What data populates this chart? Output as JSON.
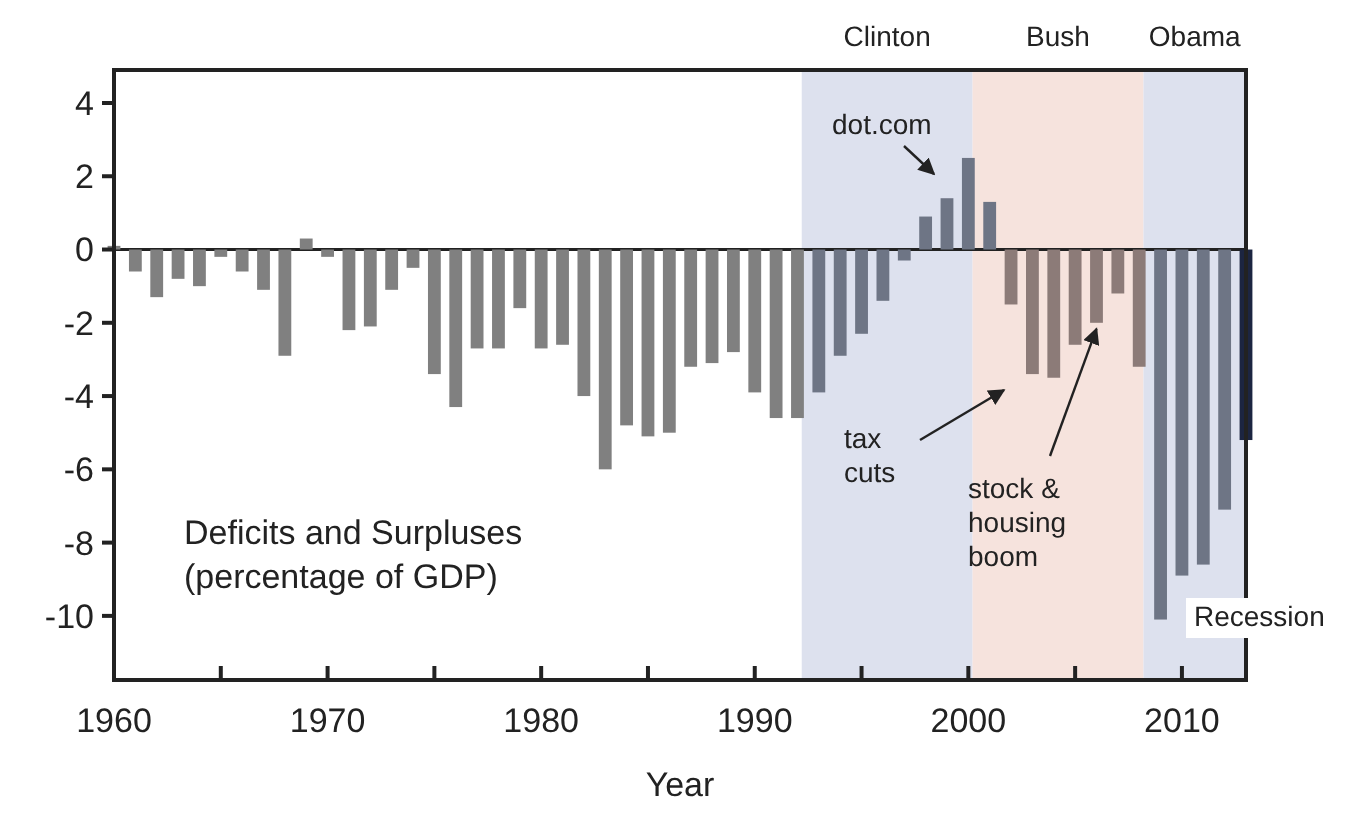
{
  "chart_data": {
    "type": "bar",
    "title": "Deficits and Surpluses\n(percentage of GDP)",
    "xlabel": "Year",
    "x": [
      1960,
      1961,
      1962,
      1963,
      1964,
      1965,
      1966,
      1967,
      1968,
      1969,
      1970,
      1971,
      1972,
      1973,
      1974,
      1975,
      1976,
      1977,
      1978,
      1979,
      1980,
      1981,
      1982,
      1983,
      1984,
      1985,
      1986,
      1987,
      1988,
      1989,
      1990,
      1991,
      1992,
      1993,
      1994,
      1995,
      1996,
      1997,
      1998,
      1999,
      2000,
      2001,
      2002,
      2003,
      2004,
      2005,
      2006,
      2007,
      2008,
      2009,
      2010,
      2011,
      2012,
      2013
    ],
    "values": [
      0.1,
      -0.6,
      -1.3,
      -0.8,
      -1.0,
      -0.2,
      -0.6,
      -1.1,
      -2.9,
      0.3,
      -0.2,
      -2.2,
      -2.1,
      -1.1,
      -0.5,
      -3.4,
      -4.3,
      -2.7,
      -2.7,
      -1.6,
      -2.7,
      -2.6,
      -4.0,
      -6.0,
      -4.8,
      -5.1,
      -5.0,
      -3.2,
      -3.1,
      -2.8,
      -3.9,
      -4.6,
      -4.6,
      -3.9,
      -2.9,
      -2.3,
      -1.4,
      -0.3,
      0.9,
      1.4,
      2.5,
      1.3,
      -1.5,
      -3.4,
      -3.5,
      -2.6,
      -2.0,
      -1.2,
      -3.2,
      -10.1,
      -8.9,
      -8.6,
      -7.1,
      -5.2
    ],
    "colors": [
      "#808080",
      "#808080",
      "#808080",
      "#808080",
      "#808080",
      "#808080",
      "#808080",
      "#808080",
      "#808080",
      "#808080",
      "#808080",
      "#808080",
      "#808080",
      "#808080",
      "#808080",
      "#808080",
      "#808080",
      "#808080",
      "#808080",
      "#808080",
      "#808080",
      "#808080",
      "#808080",
      "#808080",
      "#808080",
      "#808080",
      "#808080",
      "#808080",
      "#808080",
      "#808080",
      "#808080",
      "#808080",
      "#808080",
      "#6e7585",
      "#6e7585",
      "#6e7585",
      "#6e7585",
      "#6e7585",
      "#6e7585",
      "#6e7585",
      "#6e7585",
      "#6e7585",
      "#8c7b78",
      "#8c7b78",
      "#8c7b78",
      "#8c7b78",
      "#8c7b78",
      "#8c7b78",
      "#8c7b78",
      "#6e7585",
      "#6e7585",
      "#6e7585",
      "#6e7585",
      "#1c2541"
    ],
    "xlim": [
      1960,
      2013
    ],
    "ylim": [
      -11.75,
      4.9
    ],
    "xticks": [
      1960,
      {
        "value": 1965,
        "label": null
      },
      1970,
      {
        "value": 1975,
        "label": null
      },
      1980,
      {
        "value": 1985,
        "label": null
      },
      1990,
      {
        "value": 1995,
        "label": null
      },
      2000,
      {
        "value": 2005,
        "label": null
      },
      2010
    ],
    "yticks": [
      -10,
      -8,
      -6,
      -4,
      -2,
      0,
      2,
      4
    ],
    "bands": [
      {
        "axis": "x",
        "from": 1992.2,
        "to": 2000.2,
        "label": "Clinton",
        "color": "#dde1ee"
      },
      {
        "axis": "x",
        "from": 2000.2,
        "to": 2008.2,
        "label": "Bush",
        "color": "#f6e3dd"
      },
      {
        "axis": "x",
        "from": 2008.2,
        "to": 2013,
        "label": "Obama",
        "color": "#dde1ee"
      }
    ],
    "annotations": [
      "dot.com",
      "tax\ncuts",
      {
        "text": "stock &\nhousing\nboom",
        "x": 2006,
        "y": -2.0
      },
      "Recession"
    ]
  }
}
